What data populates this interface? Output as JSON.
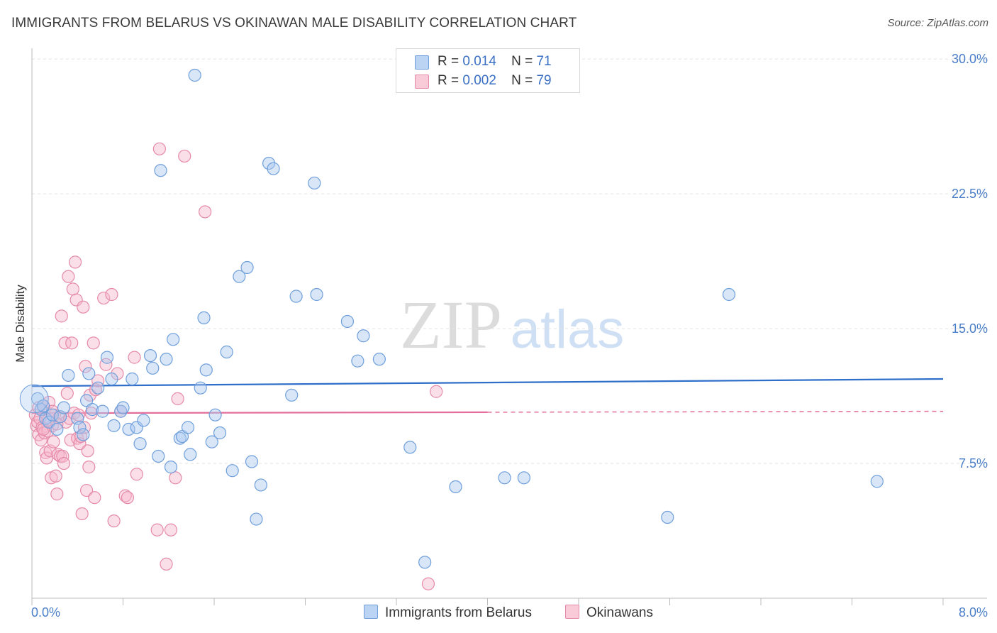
{
  "title": "IMMIGRANTS FROM BELARUS VS OKINAWAN MALE DISABILITY CORRELATION CHART",
  "source": "Source: ZipAtlas.com",
  "watermark": {
    "zip": "ZIP",
    "atlas": "atlas"
  },
  "legend": {
    "rows": [
      {
        "r_label": "R =",
        "r_value": "0.014",
        "n_label": "N =",
        "n_value": "71"
      },
      {
        "r_label": "R =",
        "r_value": "0.002",
        "n_label": "N =",
        "n_value": "79"
      }
    ]
  },
  "colors": {
    "blue_fill": "#a8c8f0",
    "blue_stroke": "#6f9fdb",
    "blue_line": "#2f6fca",
    "pink_fill": "#f7b8cb",
    "pink_stroke": "#e58aa8",
    "pink_line": "#e36e9b",
    "grid": "#e2e2e2",
    "tick_text": "#4a7ec8"
  },
  "chart_data": {
    "type": "scatter",
    "title": "IMMIGRANTS FROM BELARUS VS OKINAWAN MALE DISABILITY CORRELATION CHART",
    "xlabel": "",
    "ylabel": "Male Disability",
    "xlim": [
      0,
      8
    ],
    "ylim": [
      0,
      30.6
    ],
    "x_tick_labels": [
      "0.0%",
      "8.0%"
    ],
    "y_ticks": [
      7.5,
      15.0,
      22.5,
      30.0
    ],
    "y_tick_labels": [
      "7.5%",
      "15.0%",
      "22.5%",
      "30.0%"
    ],
    "series": [
      {
        "name": "Immigrants from Belarus",
        "color": "blue",
        "R": 0.014,
        "N": 71,
        "trend": {
          "x": [
            0,
            8
          ],
          "y": [
            11.8,
            12.2
          ]
        },
        "points": [
          [
            0.05,
            11.1
          ],
          [
            0.08,
            10.5
          ],
          [
            0.1,
            10.7
          ],
          [
            0.12,
            10.0
          ],
          [
            0.15,
            9.8
          ],
          [
            0.18,
            10.2
          ],
          [
            0.22,
            9.4
          ],
          [
            0.25,
            10.1
          ],
          [
            0.28,
            10.6
          ],
          [
            0.32,
            12.4
          ],
          [
            0.4,
            10.0
          ],
          [
            0.42,
            9.5
          ],
          [
            0.45,
            9.1
          ],
          [
            0.48,
            11.0
          ],
          [
            0.5,
            12.5
          ],
          [
            0.53,
            10.5
          ],
          [
            0.58,
            11.7
          ],
          [
            0.62,
            10.4
          ],
          [
            0.66,
            13.4
          ],
          [
            0.7,
            12.2
          ],
          [
            0.72,
            9.6
          ],
          [
            0.78,
            10.4
          ],
          [
            0.8,
            10.6
          ],
          [
            0.85,
            9.4
          ],
          [
            0.88,
            12.2
          ],
          [
            0.92,
            9.5
          ],
          [
            0.95,
            8.6
          ],
          [
            0.98,
            9.9
          ],
          [
            1.04,
            13.5
          ],
          [
            1.06,
            12.8
          ],
          [
            1.11,
            7.9
          ],
          [
            1.13,
            23.8
          ],
          [
            1.18,
            13.3
          ],
          [
            1.22,
            7.3
          ],
          [
            1.24,
            14.4
          ],
          [
            1.3,
            8.9
          ],
          [
            1.32,
            9.0
          ],
          [
            1.37,
            9.5
          ],
          [
            1.39,
            8.0
          ],
          [
            1.43,
            29.1
          ],
          [
            1.48,
            11.7
          ],
          [
            1.51,
            15.6
          ],
          [
            1.53,
            12.7
          ],
          [
            1.58,
            8.7
          ],
          [
            1.61,
            10.2
          ],
          [
            1.65,
            9.2
          ],
          [
            1.71,
            13.7
          ],
          [
            1.76,
            7.1
          ],
          [
            1.82,
            17.9
          ],
          [
            1.89,
            18.4
          ],
          [
            1.93,
            7.6
          ],
          [
            1.97,
            4.4
          ],
          [
            2.01,
            6.3
          ],
          [
            2.08,
            24.2
          ],
          [
            2.12,
            23.9
          ],
          [
            2.28,
            11.3
          ],
          [
            2.32,
            16.8
          ],
          [
            2.48,
            23.1
          ],
          [
            2.5,
            16.9
          ],
          [
            2.77,
            15.4
          ],
          [
            2.86,
            13.2
          ],
          [
            2.91,
            14.6
          ],
          [
            3.05,
            13.3
          ],
          [
            3.32,
            8.4
          ],
          [
            3.45,
            2.0
          ],
          [
            3.72,
            6.2
          ],
          [
            4.15,
            6.7
          ],
          [
            4.32,
            6.7
          ],
          [
            5.58,
            4.5
          ],
          [
            6.12,
            16.9
          ],
          [
            7.42,
            6.5
          ]
        ]
      },
      {
        "name": "Okinawans",
        "color": "pink",
        "R": 0.002,
        "N": 79,
        "trend": {
          "x": [
            0,
            4.0
          ],
          "y": [
            10.3,
            10.35
          ]
        },
        "trend_dashed": {
          "x": [
            4.0,
            8.0
          ],
          "y": [
            10.35,
            10.4
          ]
        },
        "points": [
          [
            0.03,
            10.2
          ],
          [
            0.04,
            9.6
          ],
          [
            0.05,
            9.8
          ],
          [
            0.06,
            9.1
          ],
          [
            0.07,
            10.0
          ],
          [
            0.08,
            8.8
          ],
          [
            0.09,
            9.5
          ],
          [
            0.1,
            10.7
          ],
          [
            0.11,
            9.2
          ],
          [
            0.12,
            8.1
          ],
          [
            0.13,
            7.8
          ],
          [
            0.14,
            9.3
          ],
          [
            0.15,
            10.9
          ],
          [
            0.16,
            8.2
          ],
          [
            0.17,
            6.7
          ],
          [
            0.18,
            9.6
          ],
          [
            0.19,
            8.7
          ],
          [
            0.2,
            10.2
          ],
          [
            0.21,
            6.8
          ],
          [
            0.22,
            5.8
          ],
          [
            0.23,
            8.0
          ],
          [
            0.24,
            10.1
          ],
          [
            0.25,
            7.9
          ],
          [
            0.26,
            15.7
          ],
          [
            0.27,
            7.9
          ],
          [
            0.28,
            7.5
          ],
          [
            0.29,
            14.2
          ],
          [
            0.3,
            9.8
          ],
          [
            0.31,
            11.4
          ],
          [
            0.32,
            17.9
          ],
          [
            0.33,
            10.0
          ],
          [
            0.34,
            8.8
          ],
          [
            0.35,
            14.2
          ],
          [
            0.36,
            17.2
          ],
          [
            0.37,
            10.3
          ],
          [
            0.38,
            18.7
          ],
          [
            0.39,
            16.6
          ],
          [
            0.4,
            8.9
          ],
          [
            0.41,
            10.2
          ],
          [
            0.42,
            8.6
          ],
          [
            0.43,
            9.0
          ],
          [
            0.44,
            4.7
          ],
          [
            0.45,
            16.2
          ],
          [
            0.46,
            9.5
          ],
          [
            0.47,
            12.9
          ],
          [
            0.48,
            6.0
          ],
          [
            0.49,
            8.2
          ],
          [
            0.5,
            7.3
          ],
          [
            0.51,
            11.3
          ],
          [
            0.52,
            10.3
          ],
          [
            0.54,
            14.2
          ],
          [
            0.55,
            5.6
          ],
          [
            0.56,
            11.6
          ],
          [
            0.58,
            12.1
          ],
          [
            0.63,
            16.7
          ],
          [
            0.65,
            13.0
          ],
          [
            0.7,
            16.9
          ],
          [
            0.72,
            4.3
          ],
          [
            0.75,
            12.5
          ],
          [
            0.78,
            10.4
          ],
          [
            0.82,
            5.7
          ],
          [
            0.84,
            5.6
          ],
          [
            0.9,
            13.4
          ],
          [
            0.92,
            6.9
          ],
          [
            1.1,
            3.8
          ],
          [
            1.12,
            25.0
          ],
          [
            1.18,
            1.9
          ],
          [
            1.22,
            3.8
          ],
          [
            1.26,
            6.7
          ],
          [
            1.28,
            11.1
          ],
          [
            1.34,
            24.6
          ],
          [
            1.52,
            21.5
          ],
          [
            3.48,
            0.8
          ],
          [
            3.55,
            11.5
          ],
          [
            0.06,
            10.6
          ],
          [
            0.1,
            9.4
          ],
          [
            0.14,
            9.9
          ],
          [
            0.18,
            10.4
          ],
          [
            0.22,
            9.7
          ]
        ]
      }
    ]
  },
  "bottom_legend": [
    {
      "label": "Immigrants from Belarus"
    },
    {
      "label": "Okinawans"
    }
  ]
}
